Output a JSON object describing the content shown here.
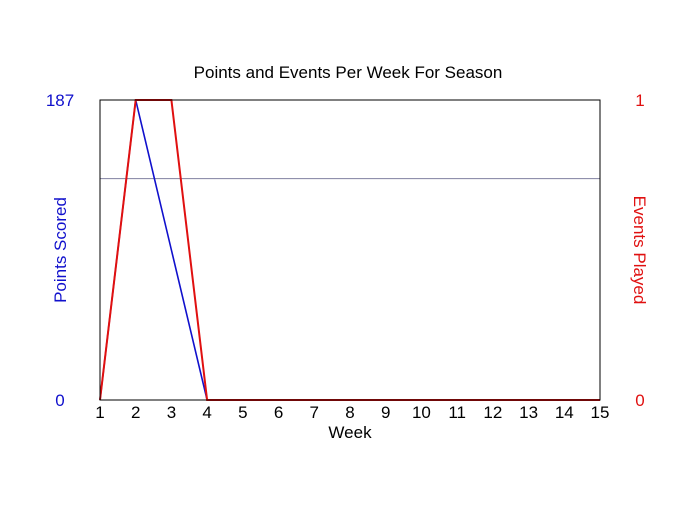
{
  "chart_data": {
    "type": "line",
    "title": "Points and Events Per Week For Season",
    "xlabel": "Week",
    "ylabel_left": "Points Scored",
    "ylabel_right": "Events Played",
    "x": [
      1,
      2,
      3,
      4,
      5,
      6,
      7,
      8,
      9,
      10,
      11,
      12,
      13,
      14,
      15
    ],
    "xticks": [
      "1",
      "2",
      "3",
      "4",
      "5",
      "6",
      "7",
      "8",
      "9",
      "10",
      "11",
      "12",
      "13",
      "14",
      "15"
    ],
    "xlim": [
      1,
      15
    ],
    "ylim_left": [
      0,
      187
    ],
    "ylim_right": [
      0,
      1
    ],
    "yticks_left": [
      "0",
      "187"
    ],
    "yticks_right": [
      "0",
      "1"
    ],
    "reference_line": {
      "axis": "left",
      "value": 138
    },
    "series": [
      {
        "axis": "left",
        "color": "#1010cc",
        "values": [
          0,
          187,
          93.5,
          0,
          0,
          0,
          0,
          0,
          0,
          0,
          0,
          0,
          0,
          0,
          0
        ]
      },
      {
        "axis": "right",
        "color": "#e01010",
        "values": [
          0,
          1,
          1,
          0,
          0,
          0,
          0,
          0,
          0,
          0,
          0,
          0,
          0,
          0,
          0
        ]
      }
    ],
    "colors": {
      "left_axis": "#1010cc",
      "right_axis": "#e01010",
      "reference": "#8080a0",
      "frame": "#000000"
    },
    "grid": false
  }
}
